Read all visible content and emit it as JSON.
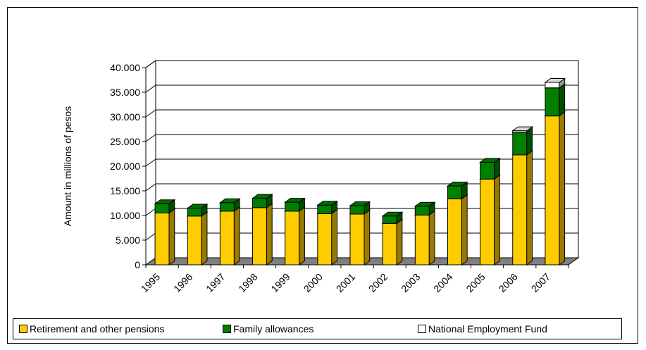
{
  "chart_data": {
    "type": "bar",
    "stacked": true,
    "three_d": true,
    "categories": [
      "1995",
      "1996",
      "1997",
      "1998",
      "1999",
      "2000",
      "2001",
      "2002",
      "2003",
      "2004",
      "2005",
      "2006",
      "2007"
    ],
    "series": [
      {
        "name": "Retirement and other pensions",
        "color": "#FFCC00",
        "values": [
          10500,
          9900,
          10900,
          11600,
          10900,
          10400,
          10300,
          8400,
          10100,
          13400,
          17400,
          22300,
          30200
        ]
      },
      {
        "name": "Family allowances",
        "color": "#008000",
        "values": [
          1900,
          1600,
          1700,
          1900,
          1800,
          1700,
          1700,
          1500,
          1800,
          2600,
          3400,
          4600,
          5700
        ]
      },
      {
        "name": "National Employment Fund",
        "color": "#FFFFFF",
        "values": [
          0,
          0,
          0,
          0,
          0,
          0,
          0,
          0,
          0,
          0,
          0,
          300,
          1100
        ]
      }
    ],
    "ylabel": "Amount in millions of pesos",
    "xlabel": "",
    "ylim": [
      0,
      40000
    ],
    "yticks": [
      0,
      5000,
      10000,
      15000,
      20000,
      25000,
      30000,
      35000,
      40000
    ],
    "ytick_labels": [
      "0",
      "5.000",
      "10.000",
      "15.000",
      "20.000",
      "25.000",
      "30.000",
      "35.000",
      "40.000"
    ],
    "grid": true,
    "legend_position": "bottom"
  }
}
